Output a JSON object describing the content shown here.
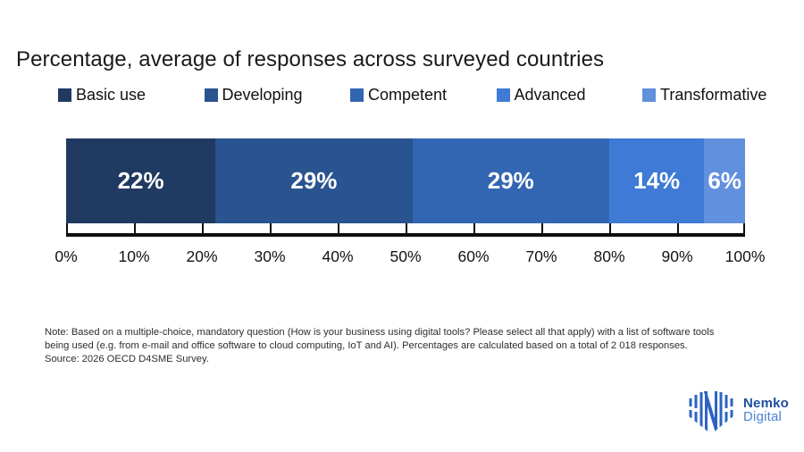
{
  "page": {
    "title": "Percentage, average of responses across surveyed countries"
  },
  "legend": {
    "items": [
      {
        "label": "Basic use",
        "color": "#203a61"
      },
      {
        "label": "Developing",
        "color": "#29548f"
      },
      {
        "label": "Competent",
        "color": "#3366b2"
      },
      {
        "label": "Advanced",
        "color": "#3e7ad6"
      },
      {
        "label": "Transformative",
        "color": "#6190dd"
      }
    ]
  },
  "chart_data": {
    "type": "bar",
    "subtype": "stacked-horizontal-single-bar",
    "title": "Percentage, average of responses across surveyed countries",
    "categories": [
      "Basic use",
      "Developing",
      "Competent",
      "Advanced",
      "Transformative"
    ],
    "values": [
      22,
      29,
      29,
      14,
      6
    ],
    "unit": "%",
    "bar_labels": [
      "22%",
      "29%",
      "29%",
      "14%",
      "6%"
    ],
    "colors": [
      "#203a61",
      "#29548f",
      "#3366b2",
      "#3e7ad6",
      "#6190dd"
    ],
    "label_color": "#ffffff",
    "xlim": [
      0,
      100
    ],
    "x_tick_labels": [
      "0%",
      "10%",
      "20%",
      "30%",
      "40%",
      "50%",
      "60%",
      "70%",
      "80%",
      "90%",
      "100%"
    ],
    "grid": false,
    "legend_position": "top"
  },
  "note": {
    "line1": "Note: Based on a multiple-choice, mandatory question (How is your business using digital tools? Please select all that apply) with a list of software tools",
    "line2": "being used (e.g. from e-mail and office software to cloud computing, IoT and AI). Percentages are calculated based on a total of 2 018 responses.",
    "source": "Source: 2026 OECD D4SME Survey."
  },
  "logo": {
    "brand": "Nemko",
    "sub": "Digital",
    "brand_color": "#1d4f9f",
    "sub_color": "#4d82d2",
    "emblem_color": "#2e63c2"
  }
}
